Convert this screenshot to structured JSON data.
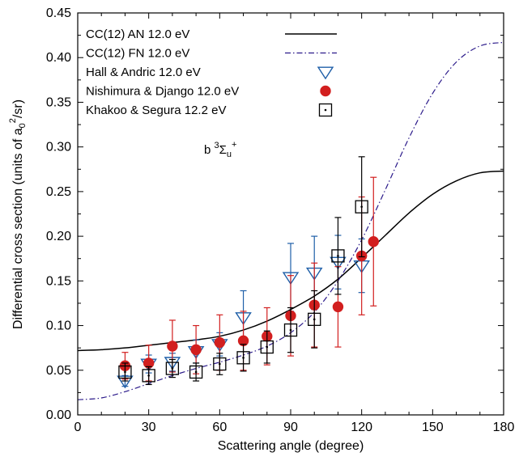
{
  "chart_data": {
    "type": "scatter",
    "xlabel": "Scattering angle (degree)",
    "ylabel": {
      "prefix": "Differential cross section (units of a",
      "sub": "0",
      "sup": "2",
      "suffix": "/sr)"
    },
    "xlim": [
      0,
      180
    ],
    "ylim": [
      0,
      0.45
    ],
    "xticks": [
      "0",
      "30",
      "60",
      "90",
      "120",
      "150",
      "180"
    ],
    "yticks": [
      "0.00",
      "0.05",
      "0.10",
      "0.15",
      "0.20",
      "0.25",
      "0.30",
      "0.35",
      "0.40",
      "0.45"
    ],
    "annotation": {
      "base": "b ",
      "sup1": "3",
      "main": "Σ",
      "sub": "u",
      "sup2": "+"
    },
    "legend_position": "top-left",
    "series": [
      {
        "name": "CC(12) AN 12.0 eV",
        "kind": "line",
        "style": "solid",
        "color": "#000000",
        "x": [
          0,
          10,
          20,
          30,
          40,
          50,
          60,
          70,
          80,
          90,
          100,
          110,
          120,
          130,
          140,
          150,
          160,
          170,
          180
        ],
        "y": [
          0.072,
          0.073,
          0.075,
          0.078,
          0.081,
          0.084,
          0.088,
          0.095,
          0.105,
          0.118,
          0.133,
          0.152,
          0.176,
          0.201,
          0.226,
          0.247,
          0.262,
          0.271,
          0.273
        ]
      },
      {
        "name": "CC(12) FN 12.0 eV",
        "kind": "line",
        "style": "dashdot",
        "color": "#2b1a8a",
        "x": [
          0,
          10,
          20,
          30,
          40,
          50,
          60,
          70,
          80,
          90,
          100,
          110,
          120,
          130,
          140,
          150,
          160,
          170,
          180
        ],
        "y": [
          0.017,
          0.019,
          0.026,
          0.035,
          0.044,
          0.052,
          0.059,
          0.067,
          0.077,
          0.092,
          0.115,
          0.15,
          0.196,
          0.252,
          0.31,
          0.36,
          0.395,
          0.413,
          0.417
        ]
      },
      {
        "name": "Hall & Andric 12.0 eV",
        "kind": "points",
        "marker": "triangle-down",
        "color": "#1f5fa8",
        "x": [
          20,
          30,
          40,
          50,
          60,
          70,
          90,
          100,
          110,
          120
        ],
        "y": [
          0.038,
          0.057,
          0.059,
          0.071,
          0.079,
          0.109,
          0.154,
          0.159,
          0.171,
          0.167
        ],
        "yerr": [
          0.006,
          0.01,
          0.01,
          0.013,
          0.013,
          0.03,
          0.038,
          0.041,
          0.03,
          0.03
        ]
      },
      {
        "name": "Nishimura & Django 12.0 eV",
        "kind": "points",
        "marker": "circle",
        "color": "#d21f1f",
        "x": [
          20,
          30,
          40,
          50,
          60,
          70,
          80,
          90,
          100,
          110,
          120,
          125
        ],
        "y": [
          0.055,
          0.058,
          0.077,
          0.073,
          0.081,
          0.083,
          0.088,
          0.111,
          0.123,
          0.121,
          0.178,
          0.194
        ],
        "yerr": [
          0.015,
          0.02,
          0.029,
          0.027,
          0.031,
          0.033,
          0.032,
          0.045,
          0.047,
          0.045,
          0.066,
          0.072
        ]
      },
      {
        "name": "Khakoo & Segura 12.2 eV",
        "kind": "points",
        "marker": "square-dot",
        "color": "#000000",
        "x": [
          20,
          30,
          40,
          50,
          60,
          70,
          80,
          90,
          100,
          110,
          120
        ],
        "y": [
          0.048,
          0.044,
          0.052,
          0.048,
          0.057,
          0.064,
          0.076,
          0.095,
          0.107,
          0.178,
          0.233
        ],
        "yerr": [
          0.01,
          0.01,
          0.01,
          0.01,
          0.012,
          0.015,
          0.018,
          0.025,
          0.032,
          0.043,
          0.056
        ]
      }
    ]
  }
}
